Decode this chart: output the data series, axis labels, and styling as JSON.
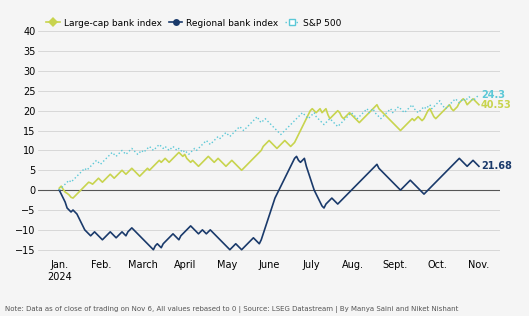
{
  "title": "",
  "note": "Note: Data as of close of trading on Nov 6, All values rebased to 0 | Source: LSEG Datastream | By Manya Saini and Niket Nishant",
  "legend": {
    "large_cap": "Large-cap bank index",
    "regional": "Regional bank index",
    "sp500": "S&P 500"
  },
  "colors": {
    "large_cap": "#c8d44e",
    "regional": "#1a3a6b",
    "sp500": "#5bc8d7",
    "background": "#f5f5f5",
    "zero_line": "#555555",
    "grid": "#cccccc"
  },
  "end_labels": {
    "large_cap": "40.53",
    "regional": "21.68",
    "sp500": "24.3"
  },
  "ylim": [
    -17,
    44
  ],
  "yticks": [
    -15,
    -10,
    -5,
    0,
    5,
    10,
    15,
    20,
    25,
    30,
    35,
    40
  ],
  "x_labels": [
    "Jan.\n2024",
    "Feb.",
    "March",
    "April",
    "May",
    "June",
    "July",
    "Aug.",
    "Sept.",
    "Oct.",
    "Nov."
  ],
  "n_points": 215,
  "large_cap": [
    0.5,
    1.0,
    0.2,
    -0.5,
    -0.8,
    -1.2,
    -1.8,
    -2.0,
    -1.5,
    -1.0,
    -0.5,
    0.0,
    0.5,
    1.0,
    1.5,
    2.0,
    1.8,
    1.5,
    2.0,
    2.5,
    3.0,
    2.5,
    2.0,
    2.5,
    3.0,
    3.5,
    4.0,
    3.5,
    3.0,
    3.5,
    4.0,
    4.5,
    5.0,
    4.5,
    4.0,
    4.5,
    5.0,
    5.5,
    5.0,
    4.5,
    4.0,
    3.5,
    4.0,
    4.5,
    5.0,
    5.5,
    5.0,
    5.5,
    6.0,
    6.5,
    7.0,
    7.5,
    7.0,
    7.5,
    8.0,
    7.5,
    7.0,
    7.5,
    8.0,
    8.5,
    9.0,
    9.5,
    9.0,
    8.5,
    9.0,
    8.0,
    7.5,
    7.0,
    7.5,
    7.0,
    6.5,
    6.0,
    6.5,
    7.0,
    7.5,
    8.0,
    8.5,
    8.0,
    7.5,
    7.0,
    7.5,
    8.0,
    7.5,
    7.0,
    6.5,
    6.0,
    6.5,
    7.0,
    7.5,
    7.0,
    6.5,
    6.0,
    5.5,
    5.0,
    5.5,
    6.0,
    6.5,
    7.0,
    7.5,
    8.0,
    8.5,
    9.0,
    9.5,
    10.0,
    11.0,
    11.5,
    12.0,
    12.5,
    12.0,
    11.5,
    11.0,
    10.5,
    11.0,
    11.5,
    12.0,
    12.5,
    12.0,
    11.5,
    11.0,
    11.5,
    12.0,
    13.0,
    14.0,
    15.0,
    16.0,
    17.0,
    18.0,
    19.0,
    20.0,
    20.5,
    20.0,
    19.5,
    20.0,
    20.5,
    19.5,
    20.0,
    20.5,
    19.0,
    18.0,
    18.5,
    19.0,
    19.5,
    20.0,
    19.5,
    18.5,
    18.0,
    18.5,
    19.0,
    19.5,
    19.0,
    18.5,
    18.0,
    17.5,
    17.0,
    17.5,
    18.0,
    18.5,
    19.0,
    19.5,
    20.0,
    20.5,
    21.0,
    21.5,
    20.5,
    20.0,
    19.5,
    19.0,
    18.5,
    18.0,
    17.5,
    17.0,
    16.5,
    16.0,
    15.5,
    15.0,
    15.5,
    16.0,
    16.5,
    17.0,
    17.5,
    18.0,
    17.5,
    18.0,
    18.5,
    18.0,
    17.5,
    18.0,
    19.0,
    20.0,
    20.5,
    19.5,
    18.5,
    18.0,
    18.5,
    19.0,
    19.5,
    20.0,
    20.5,
    21.0,
    21.5,
    20.5,
    20.0,
    20.5,
    21.0,
    22.0,
    22.5,
    23.0,
    22.5,
    21.5,
    22.0,
    22.5,
    23.0,
    22.5,
    22.0,
    21.5,
    22.0,
    22.5,
    23.0,
    23.5,
    24.0,
    24.5,
    25.0,
    26.0,
    27.0,
    28.0,
    27.5,
    27.0,
    26.5,
    27.0,
    27.5,
    28.0,
    27.5,
    26.5,
    27.5,
    26.0,
    27.0,
    27.5,
    28.0,
    40.53
  ],
  "regional": [
    0.0,
    -1.0,
    -2.0,
    -3.0,
    -4.5,
    -5.0,
    -5.5,
    -5.0,
    -5.5,
    -6.0,
    -7.0,
    -8.0,
    -9.0,
    -10.0,
    -10.5,
    -11.0,
    -11.5,
    -11.0,
    -10.5,
    -11.0,
    -11.5,
    -12.0,
    -12.5,
    -12.0,
    -11.5,
    -11.0,
    -10.5,
    -11.0,
    -11.5,
    -12.0,
    -11.5,
    -11.0,
    -10.5,
    -11.0,
    -11.5,
    -10.5,
    -10.0,
    -9.5,
    -10.0,
    -10.5,
    -11.0,
    -11.5,
    -12.0,
    -12.5,
    -13.0,
    -13.5,
    -14.0,
    -14.5,
    -15.0,
    -14.0,
    -13.5,
    -14.0,
    -14.5,
    -13.5,
    -13.0,
    -12.5,
    -12.0,
    -11.5,
    -11.0,
    -11.5,
    -12.0,
    -12.5,
    -11.5,
    -11.0,
    -10.5,
    -10.0,
    -9.5,
    -9.0,
    -9.5,
    -10.0,
    -10.5,
    -11.0,
    -10.5,
    -10.0,
    -10.5,
    -11.0,
    -10.5,
    -10.0,
    -10.5,
    -11.0,
    -11.5,
    -12.0,
    -12.5,
    -13.0,
    -13.5,
    -14.0,
    -14.5,
    -15.0,
    -14.5,
    -14.0,
    -13.5,
    -14.0,
    -14.5,
    -15.0,
    -14.5,
    -14.0,
    -13.5,
    -13.0,
    -12.5,
    -12.0,
    -12.5,
    -13.0,
    -13.5,
    -12.5,
    -11.0,
    -9.5,
    -8.0,
    -6.5,
    -5.0,
    -3.5,
    -2.0,
    -1.0,
    0.0,
    1.0,
    2.0,
    3.0,
    4.0,
    5.0,
    6.0,
    7.0,
    8.0,
    8.5,
    7.5,
    7.0,
    7.5,
    8.0,
    6.0,
    4.5,
    3.0,
    1.5,
    0.0,
    -1.0,
    -2.0,
    -3.0,
    -4.0,
    -4.5,
    -3.5,
    -3.0,
    -2.5,
    -2.0,
    -2.5,
    -3.0,
    -3.5,
    -3.0,
    -2.5,
    -2.0,
    -1.5,
    -1.0,
    -0.5,
    0.0,
    0.5,
    1.0,
    1.5,
    2.0,
    2.5,
    3.0,
    3.5,
    4.0,
    4.5,
    5.0,
    5.5,
    6.0,
    6.5,
    5.5,
    5.0,
    4.5,
    4.0,
    3.5,
    3.0,
    2.5,
    2.0,
    1.5,
    1.0,
    0.5,
    0.0,
    0.5,
    1.0,
    1.5,
    2.0,
    2.5,
    2.0,
    1.5,
    1.0,
    0.5,
    0.0,
    -0.5,
    -1.0,
    -0.5,
    0.0,
    0.5,
    1.0,
    1.5,
    2.0,
    2.5,
    3.0,
    3.5,
    4.0,
    4.5,
    5.0,
    5.5,
    6.0,
    6.5,
    7.0,
    7.5,
    8.0,
    7.5,
    7.0,
    6.5,
    6.0,
    6.5,
    7.0,
    7.5,
    7.0,
    6.5,
    6.0,
    6.5,
    7.0,
    7.5,
    8.0,
    7.5,
    7.0,
    8.0,
    7.0,
    7.5,
    21.68
  ],
  "sp500": [
    0.0,
    0.5,
    1.0,
    1.5,
    2.0,
    2.5,
    2.0,
    2.5,
    3.0,
    3.5,
    4.0,
    4.5,
    5.0,
    5.5,
    5.0,
    5.5,
    6.0,
    6.5,
    7.0,
    7.5,
    7.0,
    6.5,
    7.0,
    7.5,
    8.0,
    8.5,
    9.0,
    9.5,
    9.0,
    8.5,
    9.0,
    9.5,
    10.0,
    9.5,
    9.0,
    9.5,
    10.0,
    10.5,
    10.0,
    9.5,
    9.0,
    9.5,
    10.0,
    9.5,
    10.0,
    10.5,
    11.0,
    10.5,
    10.0,
    10.5,
    11.0,
    11.5,
    11.0,
    10.5,
    11.0,
    10.5,
    10.0,
    10.5,
    11.0,
    10.5,
    10.0,
    10.5,
    10.0,
    9.5,
    10.0,
    9.5,
    9.0,
    9.5,
    10.0,
    10.5,
    10.0,
    10.5,
    11.0,
    11.5,
    12.0,
    12.5,
    12.0,
    11.5,
    12.0,
    12.5,
    13.0,
    13.5,
    13.0,
    13.5,
    14.0,
    14.5,
    14.0,
    13.5,
    14.0,
    14.5,
    15.0,
    15.5,
    16.0,
    15.5,
    15.0,
    15.5,
    16.0,
    16.5,
    17.0,
    17.5,
    18.0,
    18.5,
    17.5,
    17.0,
    17.5,
    18.0,
    17.5,
    17.0,
    16.5,
    16.0,
    15.5,
    15.0,
    14.5,
    14.0,
    14.5,
    15.0,
    15.5,
    16.0,
    16.5,
    17.0,
    17.5,
    18.0,
    18.5,
    19.0,
    19.5,
    19.0,
    18.5,
    18.0,
    18.5,
    19.0,
    19.5,
    18.5,
    18.0,
    17.5,
    17.0,
    16.5,
    17.0,
    17.5,
    18.0,
    17.5,
    17.0,
    16.5,
    16.0,
    16.5,
    17.0,
    17.5,
    18.0,
    18.5,
    19.0,
    19.5,
    19.0,
    18.5,
    18.0,
    18.5,
    19.0,
    19.5,
    20.0,
    20.5,
    19.5,
    20.0,
    20.5,
    19.5,
    19.0,
    18.5,
    18.0,
    18.5,
    19.0,
    19.5,
    20.0,
    20.5,
    19.5,
    20.0,
    20.5,
    21.0,
    20.5,
    20.0,
    19.5,
    20.0,
    20.5,
    21.0,
    21.5,
    20.5,
    20.0,
    19.5,
    20.0,
    20.5,
    21.0,
    20.5,
    21.0,
    21.5,
    20.5,
    21.0,
    21.5,
    22.0,
    22.5,
    21.5,
    21.0,
    20.5,
    21.0,
    21.5,
    22.0,
    22.5,
    23.0,
    22.5,
    22.0,
    22.5,
    23.0,
    22.5,
    23.0,
    23.5,
    23.0,
    22.5,
    23.0,
    23.5,
    24.0,
    23.5,
    24.0,
    23.5,
    24.0,
    24.3
  ]
}
